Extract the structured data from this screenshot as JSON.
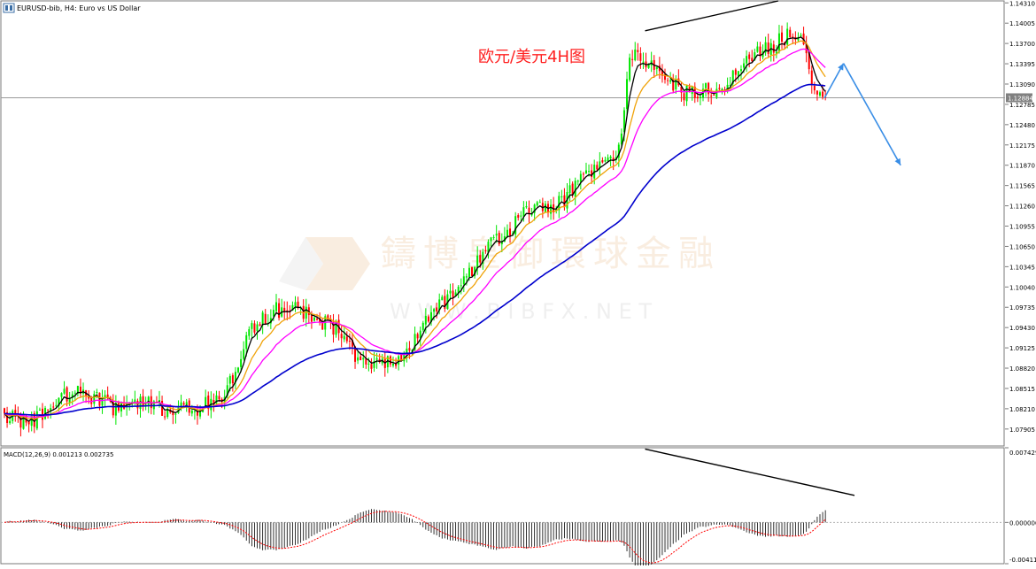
{
  "window": {
    "symbol_label": "EURUSD-bib, H4:  Euro vs US Dollar",
    "annotation": "欧元/美元4H图",
    "watermark_cn": "鑄博皇御環球金融",
    "watermark_url": "W W W . B I B F X . N E T"
  },
  "colors": {
    "bull": "#00e600",
    "bear": "#ff0000",
    "ma_black": "#000000",
    "ma_orange": "#f0a30a",
    "ma_magenta": "#ff00ff",
    "ma_blue": "#0000cd",
    "arrow": "#3a8ee6",
    "macd_signal": "#ff0000",
    "grid": "#c8c8c8"
  },
  "chart_data": [
    {
      "type": "candlestick",
      "symbol": "EURUSD",
      "timeframe": "H4",
      "ylim": [
        1.0765,
        1.1434
      ],
      "current_price": 1.12884,
      "current_price_label": "1.12884",
      "y_ticks": [
        "1.14310",
        "1.14005",
        "1.13700",
        "1.13395",
        "1.13090",
        "1.12785",
        "1.12480",
        "1.12175",
        "1.11870",
        "1.11565",
        "1.11260",
        "1.10955",
        "1.10650",
        "1.10345",
        "1.10040",
        "1.09735",
        "1.09430",
        "1.09125",
        "1.08820",
        "1.08515",
        "1.08210",
        "1.07905"
      ],
      "y_tick_values": [
        1.1431,
        1.14005,
        1.137,
        1.13395,
        1.1309,
        1.12785,
        1.1248,
        1.12175,
        1.1187,
        1.11565,
        1.1126,
        1.10955,
        1.1065,
        1.10345,
        1.1004,
        1.09735,
        1.0943,
        1.09125,
        1.0882,
        1.08515,
        1.0821,
        1.07905
      ],
      "anchors": [
        [
          0,
          1.0812
        ],
        [
          10,
          1.08
        ],
        [
          18,
          1.0832
        ],
        [
          25,
          1.0846
        ],
        [
          32,
          1.084
        ],
        [
          40,
          1.0824
        ],
        [
          48,
          1.0835
        ],
        [
          56,
          1.0824
        ],
        [
          62,
          1.0815
        ],
        [
          70,
          1.0822
        ],
        [
          80,
          1.0833
        ],
        [
          86,
          1.089
        ],
        [
          92,
          1.0948
        ],
        [
          98,
          1.0965
        ],
        [
          106,
          1.0978
        ],
        [
          114,
          1.0958
        ],
        [
          122,
          1.0942
        ],
        [
          130,
          1.0895
        ],
        [
          136,
          1.0886
        ],
        [
          142,
          1.089
        ],
        [
          148,
          1.09
        ],
        [
          154,
          1.0945
        ],
        [
          160,
          1.0975
        ],
        [
          166,
          1.0992
        ],
        [
          172,
          1.1032
        ],
        [
          178,
          1.1065
        ],
        [
          184,
          1.1085
        ],
        [
          192,
          1.1118
        ],
        [
          198,
          1.1123
        ],
        [
          206,
          1.113
        ],
        [
          212,
          1.1172
        ],
        [
          218,
          1.1178
        ],
        [
          222,
          1.1198
        ],
        [
          226,
          1.1205
        ],
        [
          230,
          1.135
        ],
        [
          234,
          1.1352
        ],
        [
          240,
          1.1322
        ],
        [
          246,
          1.1308
        ],
        [
          252,
          1.1292
        ],
        [
          258,
          1.1305
        ],
        [
          264,
          1.129
        ],
        [
          270,
          1.1332
        ],
        [
          276,
          1.1355
        ],
        [
          282,
          1.1362
        ],
        [
          286,
          1.1378
        ],
        [
          290,
          1.1385
        ],
        [
          294,
          1.1366
        ],
        [
          298,
          1.1305
        ],
        [
          302,
          1.1288
        ]
      ],
      "candle_count": 303,
      "moving_averages": [
        {
          "color": "black",
          "period": 5
        },
        {
          "color": "orange",
          "period": 12
        },
        {
          "color": "magenta",
          "period": 24
        },
        {
          "color": "blue",
          "period": 72
        }
      ],
      "trend_lines": [
        {
          "from": [
            236,
            1.1389
          ],
          "to": [
            285,
            1.1434
          ]
        }
      ],
      "projection": {
        "from": [
          302,
          1.1288
        ],
        "peak": [
          309,
          1.134
        ],
        "to": [
          330,
          1.1187
        ]
      }
    },
    {
      "type": "macd",
      "label": "MACD(12,26,9) 0.001213 0.002735",
      "params": [
        12,
        26,
        9
      ],
      "macd_value": 0.001213,
      "signal_value": 0.002735,
      "ylim": [
        -0.00411,
        0.007429
      ],
      "y_ticks": [
        "0.007429",
        "0.000000",
        "-0.00411"
      ],
      "y_tick_values": [
        0.007429,
        0.0,
        -0.00411
      ],
      "trend_lines": [
        {
          "from": [
            236,
            0.0073
          ],
          "to": [
            300,
            0.0026
          ]
        }
      ]
    }
  ]
}
